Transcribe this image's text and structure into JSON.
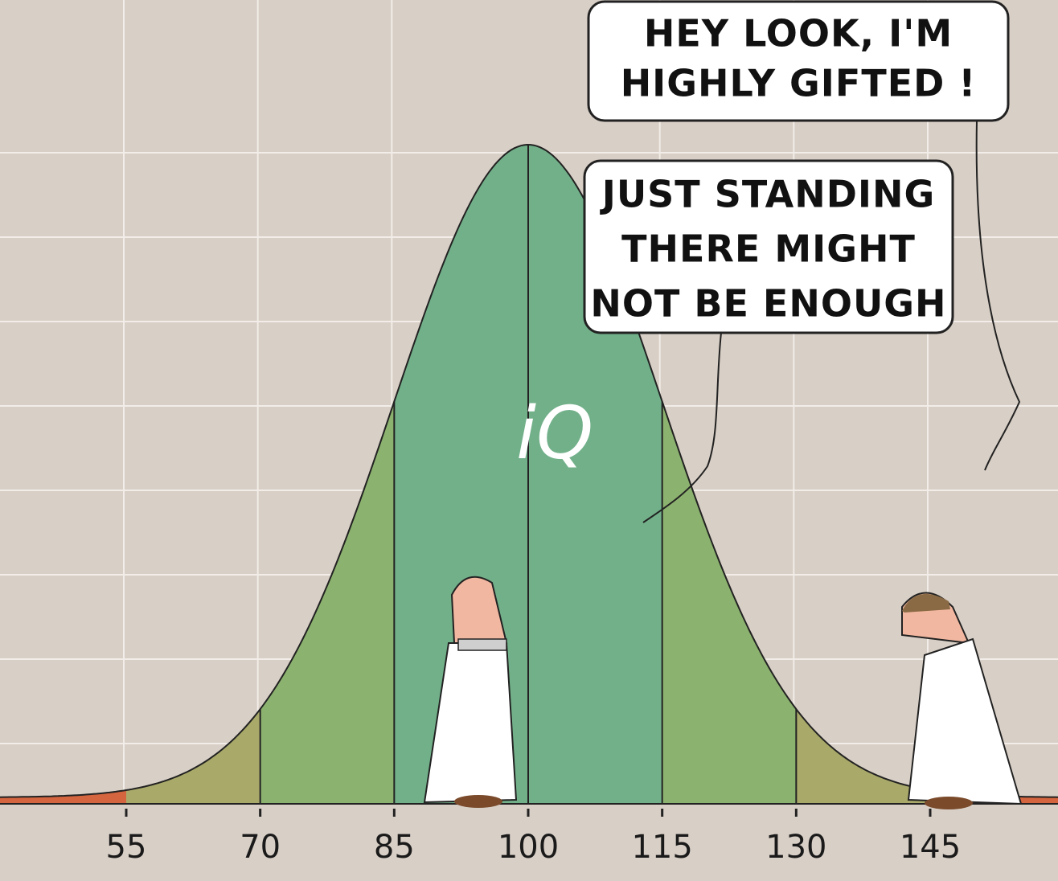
{
  "axis": {
    "ticks": [
      55,
      70,
      85,
      100,
      115,
      130,
      145
    ]
  },
  "curve_label": "iQ",
  "bubbles": [
    {
      "lines": [
        "HEY LOOK, I'M",
        "HIGHLY GIFTED !"
      ]
    },
    {
      "lines": [
        "JUST STANDING",
        "THERE MIGHT",
        "NOT BE ENOUGH"
      ]
    }
  ]
}
